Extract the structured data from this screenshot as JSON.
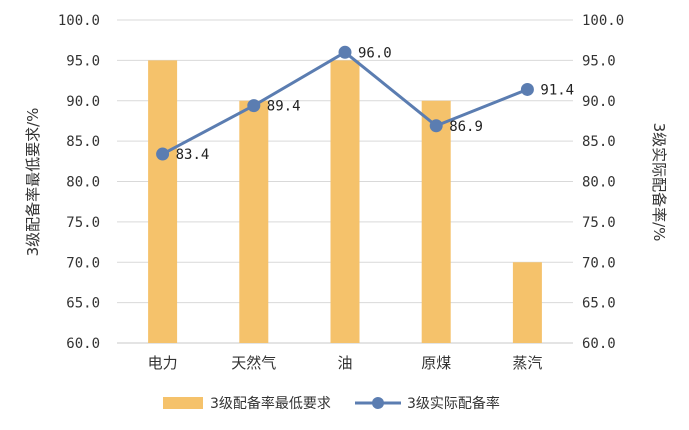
{
  "chart_data": {
    "type": "bar",
    "categories": [
      "电力",
      "天然气",
      "油",
      "原煤",
      "蒸汽"
    ],
    "series": [
      {
        "name": "3级配备率最低要求",
        "type": "bar",
        "axis": "left",
        "color": "#F5C26B",
        "values": [
          95.0,
          90.0,
          95.0,
          90.0,
          70.0
        ]
      },
      {
        "name": "3级实际配备率",
        "type": "line",
        "axis": "right",
        "color": "#5B7DB1",
        "values": [
          83.4,
          89.4,
          96.0,
          86.9,
          91.4
        ],
        "labels": [
          "83.4",
          "89.4",
          "96.0",
          "86.9",
          "91.4"
        ]
      }
    ],
    "ylabel": "3级配备率最低要求/%",
    "y2label": "3级实际配备率/%",
    "ylim": [
      60,
      100
    ],
    "y2lim": [
      60,
      100
    ],
    "yticks": [
      "60.0",
      "65.0",
      "70.0",
      "75.0",
      "80.0",
      "85.0",
      "90.0",
      "95.0",
      "100.0"
    ],
    "y2ticks": [
      "60.0",
      "65.0",
      "70.0",
      "75.0",
      "80.0",
      "85.0",
      "90.0",
      "95.0",
      "100.0"
    ],
    "grid": true,
    "legend": "bottom"
  }
}
